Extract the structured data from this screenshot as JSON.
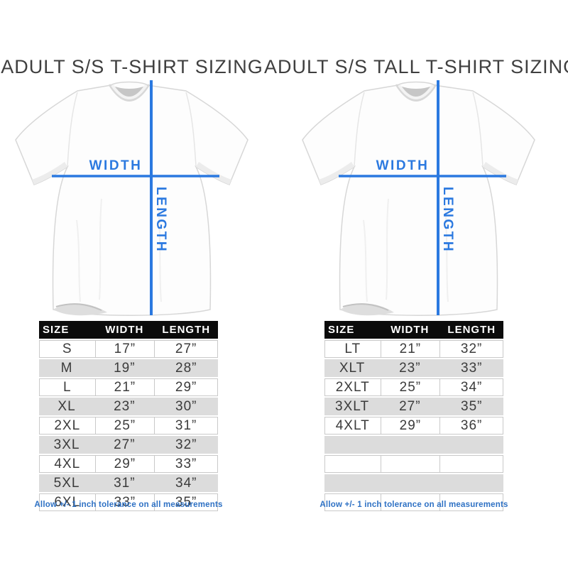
{
  "colors": {
    "accent_blue": "#2b79e0",
    "footnote_blue": "#2e71c4",
    "header_bg": "#0b0b0b",
    "header_text": "#ffffff",
    "row_alt_gray": "#dcdcdc",
    "cell_border": "#c9c9c9",
    "cell_text": "#3b3b3b",
    "title_color": "#3f3f3f"
  },
  "chart_data": [
    {
      "type": "table",
      "title": "ADULT S/S T-SHIRT SIZING",
      "diagram_labels": {
        "width": "WIDTH",
        "length": "LENGTH"
      },
      "columns": [
        "SIZE",
        "WIDTH",
        "LENGTH"
      ],
      "rows": [
        [
          "S",
          "17”",
          "27”"
        ],
        [
          "M",
          "19”",
          "28”"
        ],
        [
          "L",
          "21”",
          "29”"
        ],
        [
          "XL",
          "23”",
          "30”"
        ],
        [
          "2XL",
          "25”",
          "31”"
        ],
        [
          "3XL",
          "27”",
          "32”"
        ],
        [
          "4XL",
          "29”",
          "33”"
        ],
        [
          "5XL",
          "31”",
          "34”"
        ],
        [
          "6XL",
          "33”",
          "35”"
        ]
      ],
      "empty_rows": 0,
      "footnote": "Allow +/- 1 inch tolerance on all measurements"
    },
    {
      "type": "table",
      "title": "ADULT S/S TALL T-SHIRT SIZING",
      "diagram_labels": {
        "width": "WIDTH",
        "length": "LENGTH"
      },
      "columns": [
        "SIZE",
        "WIDTH",
        "LENGTH"
      ],
      "rows": [
        [
          "LT",
          "21”",
          "32”"
        ],
        [
          "XLT",
          "23”",
          "33”"
        ],
        [
          "2XLT",
          "25”",
          "34”"
        ],
        [
          "3XLT",
          "27”",
          "35”"
        ],
        [
          "4XLT",
          "29”",
          "36”"
        ]
      ],
      "empty_rows": 4,
      "footnote": "Allow +/- 1 inch tolerance on all measurements"
    }
  ]
}
